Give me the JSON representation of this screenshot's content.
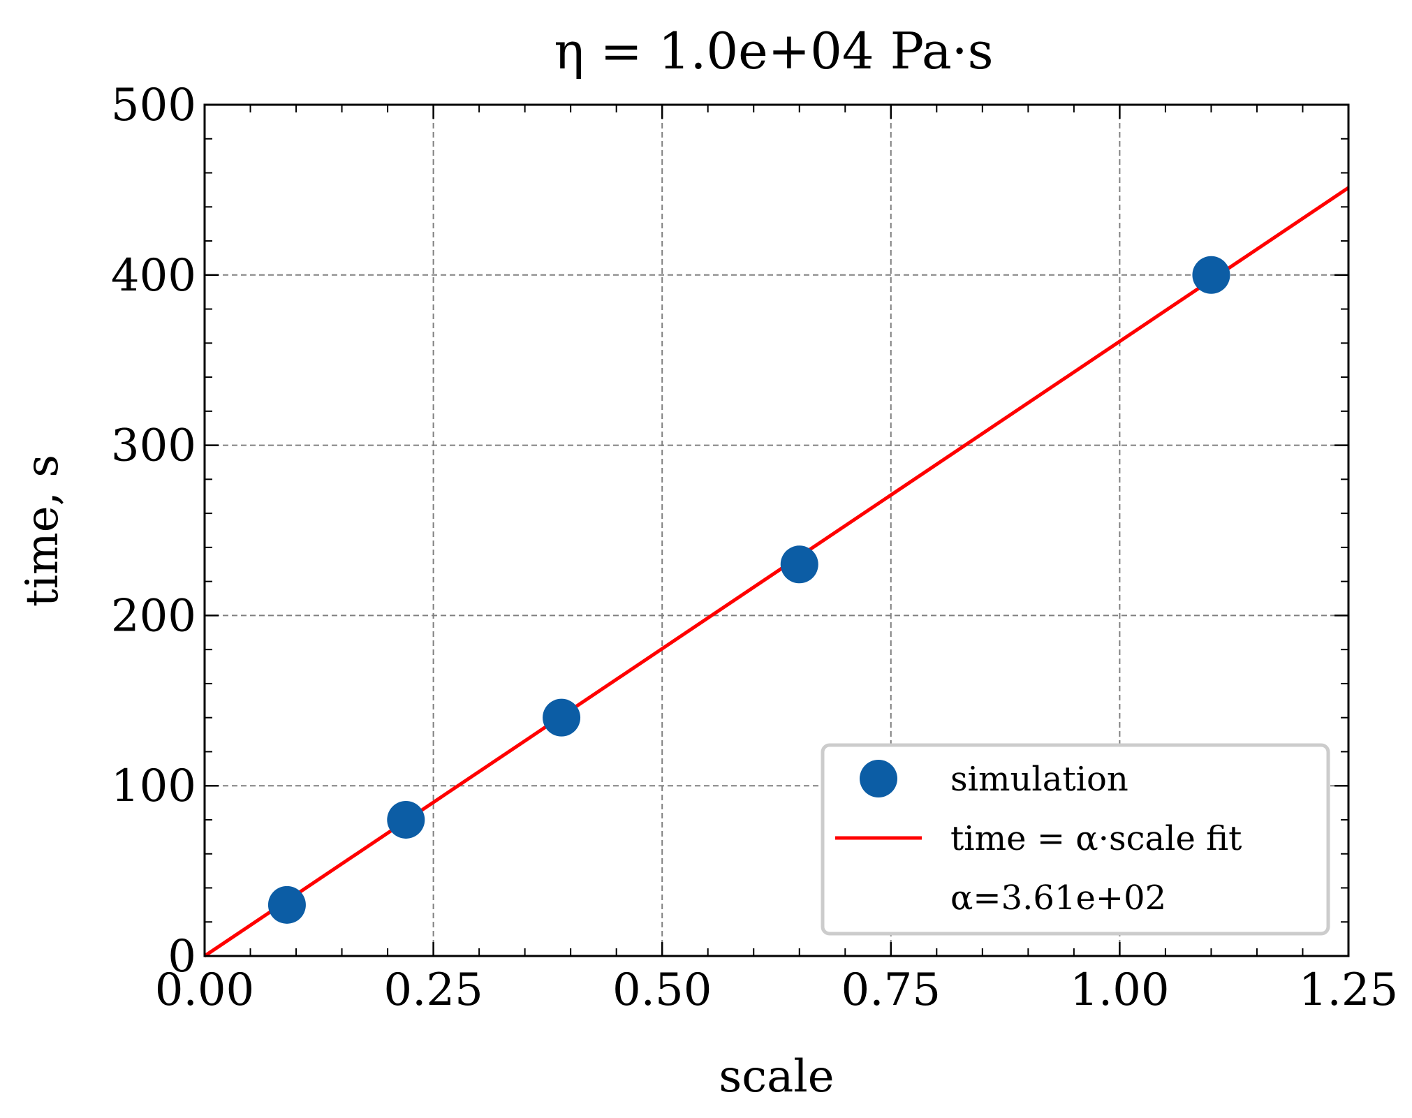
{
  "chart_data": {
    "type": "scatter",
    "title": "η = 1.0e+04 Pa·s",
    "xlabel": "scale",
    "ylabel": "time, s",
    "xlim": [
      0,
      1.25
    ],
    "ylim": [
      0,
      500
    ],
    "xticks": [
      "0.00",
      "0.25",
      "0.50",
      "0.75",
      "1.00",
      "1.25"
    ],
    "yticks": [
      "0",
      "100",
      "200",
      "300",
      "400",
      "500"
    ],
    "grid": true,
    "legend_position": "lower-right",
    "series": [
      {
        "name": "simulation",
        "kind": "scatter",
        "color": "#0C5DA5",
        "x": [
          0.09,
          0.22,
          0.39,
          0.65,
          1.1
        ],
        "y": [
          30,
          80,
          140,
          230,
          400
        ]
      },
      {
        "name": "time = α·scale fit",
        "kind": "line",
        "color": "#FF0000",
        "slope": 361,
        "x": [
          0,
          1.25
        ],
        "y": [
          0,
          451.25
        ]
      }
    ],
    "legend_note": "α=3.61e+02"
  }
}
